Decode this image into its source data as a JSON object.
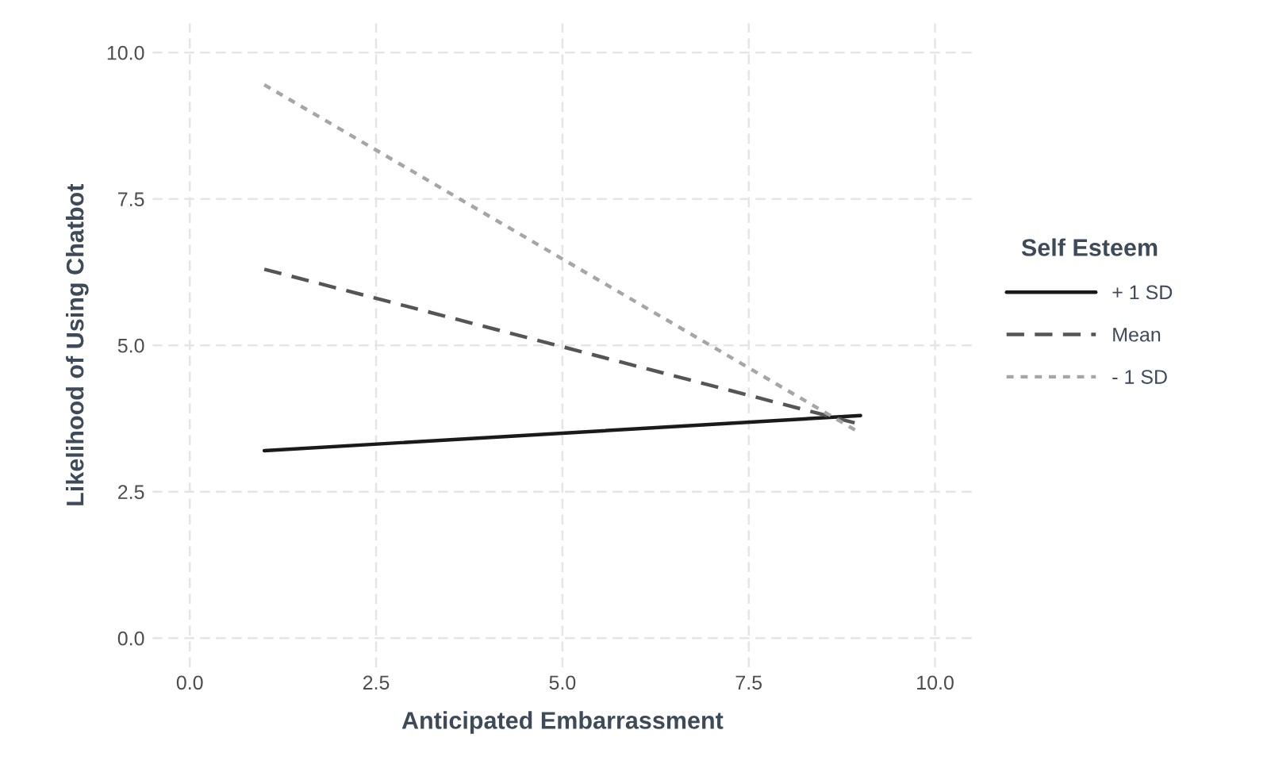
{
  "chart_data": {
    "type": "line",
    "xlabel": "Anticipated Embarrassment",
    "ylabel": "Likelihood of Using Chatbot",
    "legend_title": "Self Esteem",
    "x": [
      1,
      9
    ],
    "series": [
      {
        "name": "+ 1 SD",
        "color": "#1a1a1a",
        "line_style": "solid",
        "values": [
          3.2,
          3.8
        ]
      },
      {
        "name": "Mean",
        "color": "#555555",
        "line_style": "dashed",
        "values": [
          6.3,
          3.65
        ]
      },
      {
        "name": "- 1 SD",
        "color": "#a6a6a6",
        "line_style": "dotted",
        "values": [
          9.45,
          3.5
        ]
      }
    ],
    "xlim": [
      -0.5,
      10.5
    ],
    "ylim": [
      -0.5,
      10.5
    ],
    "xticks": [
      {
        "value": 0,
        "label": "0.0"
      },
      {
        "value": 2.5,
        "label": "2.5"
      },
      {
        "value": 5,
        "label": "5.0"
      },
      {
        "value": 7.5,
        "label": "7.5"
      },
      {
        "value": 10,
        "label": "10.0"
      }
    ],
    "yticks": [
      {
        "value": 0,
        "label": "0.0"
      },
      {
        "value": 2.5,
        "label": "2.5"
      },
      {
        "value": 5,
        "label": "5.0"
      },
      {
        "value": 7.5,
        "label": "7.5"
      },
      {
        "value": 10,
        "label": "10.0"
      }
    ],
    "grid": true,
    "legend": "right"
  }
}
